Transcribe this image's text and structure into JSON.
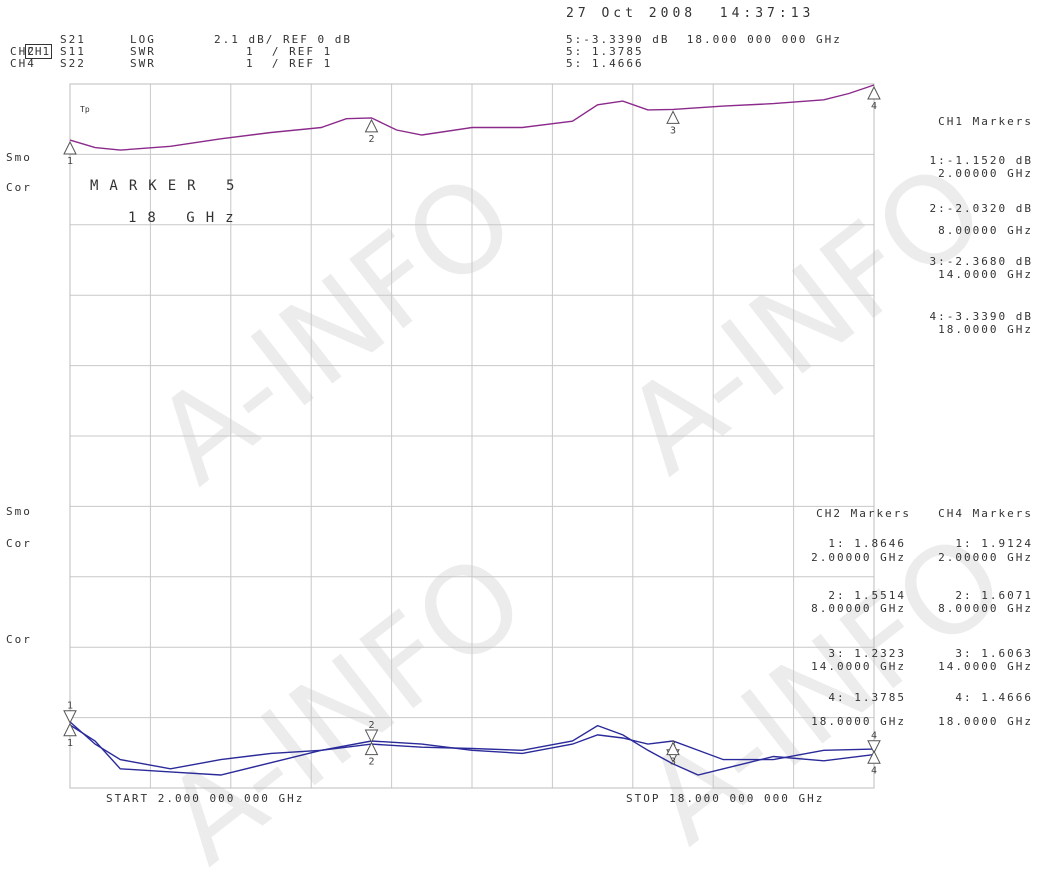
{
  "header": {
    "datetime": "27 Oct 2008  14:37:13",
    "channels": [
      {
        "ch": "CH1",
        "param": "S21",
        "format": "LOG",
        "scale": "2.1 dB/ REF 0 dB",
        "active": true
      },
      {
        "ch": "CH2",
        "param": "S11",
        "format": "SWR",
        "scale": "1  / REF 1",
        "active": false
      },
      {
        "ch": "CH4",
        "param": "S22",
        "format": "SWR",
        "scale": "1  / REF 1",
        "active": false
      }
    ],
    "marker_readout": [
      "5:-3.3390 dB  18.000 000 000 GHz",
      "5: 1.3785",
      "5: 1.4666"
    ]
  },
  "left_labels": {
    "smo_top": "Smo",
    "cor_top": "Cor",
    "smo_bottom": "Smo",
    "cor_bottom": "Cor",
    "cor_third": "Cor",
    "tp_mark": "Tp"
  },
  "marker_annotation": {
    "line1": "MARKER 5",
    "line2": "18 GHz"
  },
  "ch1_markers": {
    "title": "CH1 Markers",
    "entries": [
      {
        "value": "1:-1.1520 dB",
        "freq": "2.00000 GHz"
      },
      {
        "value": "2:-2.0320 dB",
        "freq": "8.00000 GHz"
      },
      {
        "value": "3:-2.3680 dB",
        "freq": "14.0000 GHz"
      },
      {
        "value": "4:-3.3390 dB",
        "freq": "18.0000 GHz"
      }
    ]
  },
  "ch2_markers": {
    "title": "CH2 Markers",
    "entries": [
      {
        "value": "1: 1.8646",
        "freq": "2.00000 GHz"
      },
      {
        "value": "2: 1.5514",
        "freq": "8.00000 GHz"
      },
      {
        "value": "3: 1.2323",
        "freq": "14.0000 GHz"
      },
      {
        "value": "4: 1.3785",
        "freq": "18.0000 GHz"
      }
    ]
  },
  "ch4_markers": {
    "title": "CH4 Markers",
    "entries": [
      {
        "value": "1: 1.9124",
        "freq": "2.00000 GHz"
      },
      {
        "value": "2: 1.6071",
        "freq": "8.00000 GHz"
      },
      {
        "value": "3: 1.6063",
        "freq": "14.0000 GHz"
      },
      {
        "value": "4: 1.4666",
        "freq": "18.0000 GHz"
      }
    ]
  },
  "footer": {
    "start": "START 2.000 000 000 GHz",
    "stop": "STOP 18.000 000 000 GHz"
  },
  "watermark": "A-INFO",
  "colors": {
    "ch1_trace": "#8b2a8b",
    "ch2_trace": "#2a2a9a",
    "ch4_trace": "#2a2a9a",
    "grid": "#c8c8c8",
    "text": "#333333"
  },
  "chart_data": {
    "type": "line",
    "x_unit": "GHz",
    "xlim": [
      2,
      18
    ],
    "grid": true,
    "series": [
      {
        "name": "S21",
        "format": "LOG",
        "x": [
          2,
          2.5,
          3,
          4,
          5,
          6,
          7,
          7.5,
          8,
          8.5,
          9,
          10,
          11,
          12,
          12.5,
          13,
          13.5,
          14,
          15,
          16,
          17,
          17.5,
          18
        ],
        "y": [
          -1.15,
          -0.85,
          -0.75,
          -0.9,
          -1.2,
          -1.45,
          -1.65,
          -2.0,
          -2.03,
          -1.55,
          -1.35,
          -1.65,
          -1.65,
          -1.9,
          -2.55,
          -2.7,
          -2.35,
          -2.37,
          -2.5,
          -2.6,
          -2.75,
          -3.0,
          -3.34
        ],
        "markers": [
          {
            "n": 1,
            "x": 2,
            "y": -1.152
          },
          {
            "n": 2,
            "x": 8,
            "y": -2.032
          },
          {
            "n": 3,
            "x": 14,
            "y": -2.368
          },
          {
            "n": 4,
            "x": 18,
            "y": -3.339
          }
        ]
      },
      {
        "name": "S11",
        "format": "SWR",
        "x": [
          2,
          2.5,
          3,
          4,
          5,
          6,
          7,
          8,
          9,
          10,
          11,
          12,
          12.5,
          13,
          13.5,
          14,
          14.5,
          15,
          16,
          17,
          18
        ],
        "y": [
          1.86,
          1.6,
          1.15,
          1.1,
          1.05,
          1.25,
          1.45,
          1.55,
          1.5,
          1.48,
          1.45,
          1.6,
          1.85,
          1.7,
          1.45,
          1.23,
          1.05,
          1.15,
          1.35,
          1.28,
          1.38
        ],
        "markers": [
          {
            "n": 1,
            "x": 2,
            "y": 1.8646
          },
          {
            "n": 2,
            "x": 8,
            "y": 1.5514
          },
          {
            "n": 3,
            "x": 14,
            "y": 1.2323
          },
          {
            "n": 4,
            "x": 18,
            "y": 1.3785
          }
        ]
      },
      {
        "name": "S22",
        "format": "SWR",
        "x": [
          2,
          2.5,
          3,
          4,
          5,
          6,
          7,
          8,
          9,
          10,
          11,
          12,
          12.5,
          13,
          13.5,
          14,
          15,
          16,
          17,
          18
        ],
        "y": [
          1.91,
          1.55,
          1.3,
          1.15,
          1.3,
          1.4,
          1.45,
          1.6,
          1.55,
          1.45,
          1.4,
          1.55,
          1.7,
          1.65,
          1.55,
          1.6,
          1.3,
          1.3,
          1.45,
          1.47
        ],
        "markers": [
          {
            "n": 1,
            "x": 2,
            "y": 1.9124
          },
          {
            "n": 2,
            "x": 8,
            "y": 1.6071
          },
          {
            "n": 3,
            "x": 14,
            "y": 1.6063
          },
          {
            "n": 4,
            "x": 18,
            "y": 1.4666
          }
        ]
      }
    ]
  }
}
